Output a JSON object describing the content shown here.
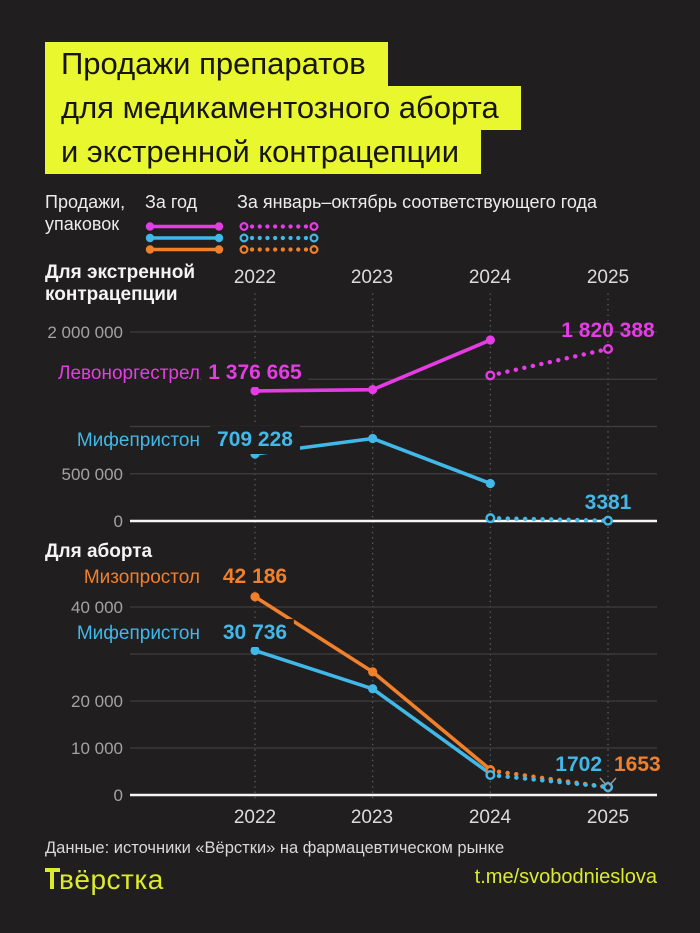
{
  "colors": {
    "background": "#201e1e",
    "accent_yellow": "#e9f72e",
    "magenta": "#e53ce5",
    "blue": "#41b8e8",
    "orange": "#f0802b",
    "grid": "#3f3f3f",
    "axis_white": "#f5f5f5"
  },
  "title": {
    "lines": [
      "Продажи препаратов",
      "для медикаментозного аборта",
      "и экстренной контрацепции"
    ]
  },
  "legend": {
    "axis_label_line1": "Продажи,",
    "axis_label_line2": "упаковок",
    "solid_label": "За год",
    "dotted_label": "За январь–октябрь соответствующего года",
    "colors": [
      "#e53ce5",
      "#41b8e8",
      "#f0802b"
    ]
  },
  "chart_data": [
    {
      "type": "line",
      "title": "Для экстренной контрацепции",
      "years": [
        "2022",
        "2023",
        "2024",
        "2025"
      ],
      "ylim": [
        0,
        2000000
      ],
      "gridline_values": [
        2000000,
        1500000,
        1000000,
        500000,
        0
      ],
      "yticks": [
        "2 000 000",
        "500 000",
        "0"
      ],
      "grid": true,
      "legend_position": "inline-left",
      "series": [
        {
          "name": "Левоноргестрел",
          "period": "annual",
          "style": "solid",
          "color": "#e53ce5",
          "x": [
            2022,
            2023,
            2024
          ],
          "values": [
            1376665,
            1390000,
            1915000
          ],
          "value_label": "1 376 665"
        },
        {
          "name": "Левоноргестрел (янв–окт)",
          "period": "jan-oct",
          "style": "dotted",
          "color": "#e53ce5",
          "x": [
            2024,
            2025
          ],
          "values": [
            1540000,
            1820388
          ],
          "end_label": "1 820 388"
        },
        {
          "name": "Мифепристон",
          "period": "annual",
          "style": "solid",
          "color": "#41b8e8",
          "x": [
            2022,
            2023,
            2024
          ],
          "values": [
            709228,
            873000,
            397000
          ],
          "value_label": "709 228"
        },
        {
          "name": "Мифепристон (янв–окт)",
          "period": "jan-oct",
          "style": "dotted",
          "color": "#41b8e8",
          "x": [
            2024,
            2025
          ],
          "values": [
            30000,
            3381
          ],
          "end_label": "3381"
        }
      ]
    },
    {
      "type": "line",
      "title": "Для аборта",
      "years": [
        "2022",
        "2023",
        "2024",
        "2025"
      ],
      "ylim": [
        0,
        40000
      ],
      "gridline_values": [
        40000,
        30000,
        20000,
        10000,
        0
      ],
      "yticks": [
        "40 000",
        "20 000",
        "10 000",
        "0"
      ],
      "grid": true,
      "legend_position": "inline-left",
      "series": [
        {
          "name": "Мизопростол",
          "period": "annual",
          "style": "solid",
          "color": "#f0802b",
          "x": [
            2022,
            2023,
            2024
          ],
          "values": [
            42186,
            26200,
            5400
          ],
          "value_label": "42 186"
        },
        {
          "name": "Мизопростол (янв–окт)",
          "period": "jan-oct",
          "style": "dotted",
          "color": "#f0802b",
          "x": [
            2024,
            2025
          ],
          "values": [
            5200,
            1653
          ],
          "end_label": "1653"
        },
        {
          "name": "Мифепристон",
          "period": "annual",
          "style": "solid",
          "color": "#41b8e8",
          "x": [
            2022,
            2023,
            2024
          ],
          "values": [
            30736,
            22600,
            4500
          ],
          "value_label": "30 736"
        },
        {
          "name": "Мифепристон (янв–окт)",
          "period": "jan-oct",
          "style": "dotted",
          "color": "#41b8e8",
          "x": [
            2024,
            2025
          ],
          "values": [
            4250,
            1702
          ],
          "end_label": "1702"
        }
      ]
    }
  ],
  "footer": {
    "source": "Данные: источники «Вёрстки» на фармацевтическом рынке",
    "logo_text": "вёрстка",
    "link": "t.me/svobodnieslova"
  }
}
